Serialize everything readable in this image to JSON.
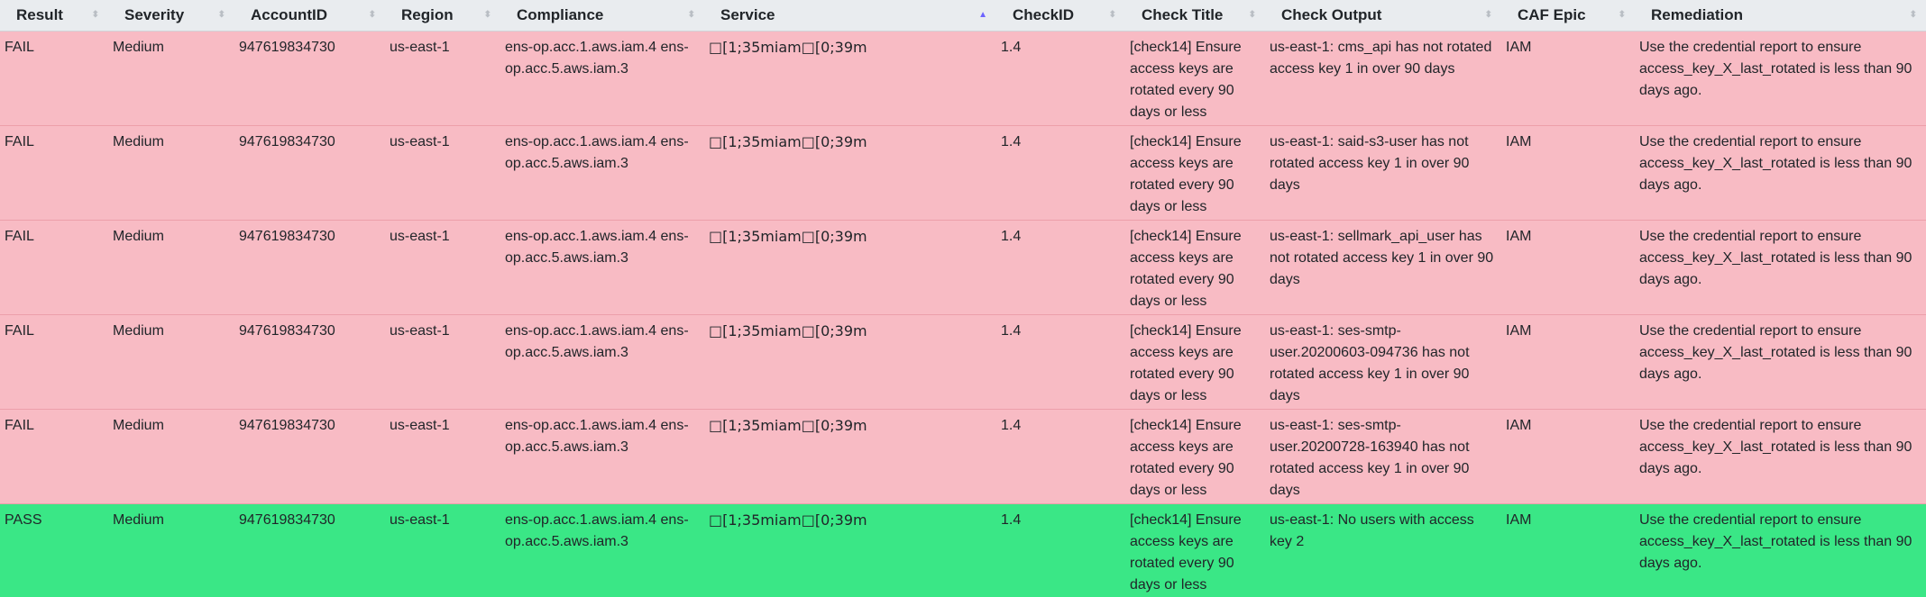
{
  "columns": [
    {
      "key": "result",
      "label": "Result",
      "sorted": false
    },
    {
      "key": "severity",
      "label": "Severity",
      "sorted": false
    },
    {
      "key": "account",
      "label": "AccountID",
      "sorted": false
    },
    {
      "key": "region",
      "label": "Region",
      "sorted": false
    },
    {
      "key": "compliance",
      "label": "Compliance",
      "sorted": false
    },
    {
      "key": "service",
      "label": "Service",
      "sorted": true,
      "sort_direction": "ascending"
    },
    {
      "key": "checkid",
      "label": "CheckID",
      "sorted": false
    },
    {
      "key": "title",
      "label": "Check Title",
      "sorted": false
    },
    {
      "key": "output",
      "label": "Check Output",
      "sorted": false
    },
    {
      "key": "caf",
      "label": "CAF Epic",
      "sorted": false
    },
    {
      "key": "remediation",
      "label": "Remediation",
      "sorted": false
    }
  ],
  "colors": {
    "fail_row": "#f8bbc4",
    "pass_row": "#3ae786",
    "header_bg": "#e9ecef",
    "sort_active": "#6c63ff"
  },
  "rows": [
    {
      "result": "FAIL",
      "severity": "Medium",
      "account": "947619834730",
      "region": "us-east-1",
      "compliance": "ens-op.acc.1.aws.iam.4 ens-op.acc.5.aws.iam.3",
      "service": "□[1;35miam□[0;39m",
      "checkid": "1.4",
      "title": "[check14] Ensure access keys are rotated every 90 days or less",
      "output": "us-east-1: cms_api has not rotated access key 1 in over 90 days",
      "caf": "IAM",
      "remediation": "Use the credential report to ensure access_key_X_last_rotated is less than 90 days ago."
    },
    {
      "result": "FAIL",
      "severity": "Medium",
      "account": "947619834730",
      "region": "us-east-1",
      "compliance": "ens-op.acc.1.aws.iam.4 ens-op.acc.5.aws.iam.3",
      "service": "□[1;35miam□[0;39m",
      "checkid": "1.4",
      "title": "[check14] Ensure access keys are rotated every 90 days or less",
      "output": "us-east-1: said-s3-user has not rotated access key 1 in over 90 days",
      "caf": "IAM",
      "remediation": "Use the credential report to ensure access_key_X_last_rotated is less than 90 days ago."
    },
    {
      "result": "FAIL",
      "severity": "Medium",
      "account": "947619834730",
      "region": "us-east-1",
      "compliance": "ens-op.acc.1.aws.iam.4 ens-op.acc.5.aws.iam.3",
      "service": "□[1;35miam□[0;39m",
      "checkid": "1.4",
      "title": "[check14] Ensure access keys are rotated every 90 days or less",
      "output": "us-east-1: sellmark_api_user has not rotated access key 1 in over 90 days",
      "caf": "IAM",
      "remediation": "Use the credential report to ensure access_key_X_last_rotated is less than 90 days ago."
    },
    {
      "result": "FAIL",
      "severity": "Medium",
      "account": "947619834730",
      "region": "us-east-1",
      "compliance": "ens-op.acc.1.aws.iam.4 ens-op.acc.5.aws.iam.3",
      "service": "□[1;35miam□[0;39m",
      "checkid": "1.4",
      "title": "[check14] Ensure access keys are rotated every 90 days or less",
      "output": "us-east-1: ses-smtp-user.20200603-094736 has not rotated access key 1 in over 90 days",
      "caf": "IAM",
      "remediation": "Use the credential report to ensure access_key_X_last_rotated is less than 90 days ago."
    },
    {
      "result": "FAIL",
      "severity": "Medium",
      "account": "947619834730",
      "region": "us-east-1",
      "compliance": "ens-op.acc.1.aws.iam.4 ens-op.acc.5.aws.iam.3",
      "service": "□[1;35miam□[0;39m",
      "checkid": "1.4",
      "title": "[check14] Ensure access keys are rotated every 90 days or less",
      "output": "us-east-1: ses-smtp-user.20200728-163940 has not rotated access key 1 in over 90 days",
      "caf": "IAM",
      "remediation": "Use the credential report to ensure access_key_X_last_rotated is less than 90 days ago."
    },
    {
      "result": "PASS",
      "severity": "Medium",
      "account": "947619834730",
      "region": "us-east-1",
      "compliance": "ens-op.acc.1.aws.iam.4 ens-op.acc.5.aws.iam.3",
      "service": "□[1;35miam□[0;39m",
      "checkid": "1.4",
      "title": "[check14] Ensure access keys are rotated every 90 days or less",
      "output": "us-east-1: No users with access key 2",
      "caf": "IAM",
      "remediation": "Use the credential report to ensure access_key_X_last_rotated is less than 90 days ago."
    }
  ]
}
